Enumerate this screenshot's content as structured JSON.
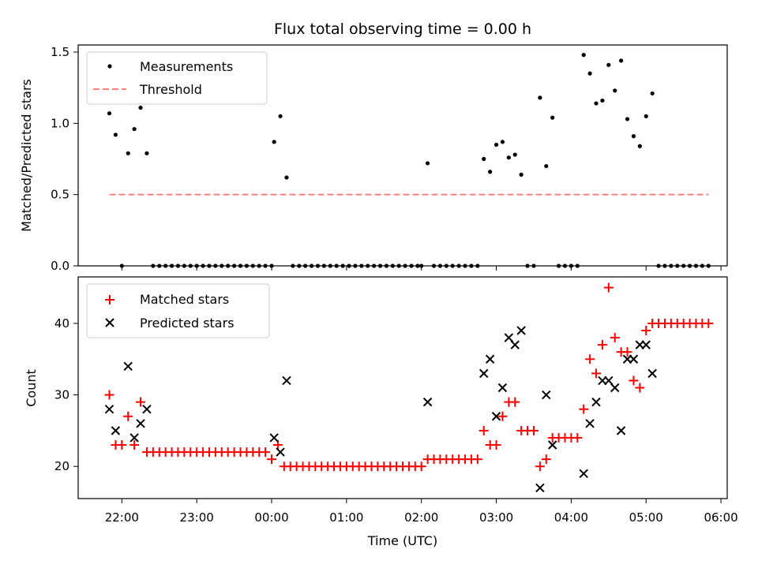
{
  "chart_data": [
    {
      "type": "scatter",
      "title": "Flux total observing time = 0.00 h",
      "ylabel": "Matched/Predicted stars",
      "ylim": [
        0,
        1.55
      ],
      "yticks": [
        "0.0",
        "0.5",
        "1.0",
        "1.5"
      ],
      "legend": {
        "placement": "top-left",
        "entries": [
          "Measurements",
          "Threshold"
        ]
      },
      "threshold": {
        "name": "Threshold",
        "value": 0.5,
        "x_start": "21:50",
        "x_end": "05:50",
        "color": "#ff7f7f"
      },
      "series": [
        {
          "name": "Measurements",
          "color": "#000000",
          "marker": "dot",
          "points": [
            [
              "21:50",
              1.07
            ],
            [
              "21:55",
              0.92
            ],
            [
              "22:00",
              0.0
            ],
            [
              "22:05",
              0.79
            ],
            [
              "22:10",
              0.96
            ],
            [
              "22:15",
              1.11
            ],
            [
              "22:20",
              0.79
            ],
            [
              "22:25",
              0.0
            ],
            [
              "22:30",
              0.0
            ],
            [
              "22:35",
              0.0
            ],
            [
              "22:40",
              0.0
            ],
            [
              "22:45",
              0.0
            ],
            [
              "22:50",
              0.0
            ],
            [
              "22:55",
              0.0
            ],
            [
              "23:00",
              0.0
            ],
            [
              "23:05",
              0.0
            ],
            [
              "23:10",
              0.0
            ],
            [
              "23:15",
              0.0
            ],
            [
              "23:20",
              0.0
            ],
            [
              "23:25",
              0.0
            ],
            [
              "23:30",
              0.0
            ],
            [
              "23:35",
              0.0
            ],
            [
              "23:40",
              0.0
            ],
            [
              "23:45",
              0.0
            ],
            [
              "23:50",
              0.0
            ],
            [
              "23:55",
              0.0
            ],
            [
              "00:00",
              0.0
            ],
            [
              "00:02",
              0.87
            ],
            [
              "00:07",
              1.05
            ],
            [
              "00:12",
              0.62
            ],
            [
              "00:17",
              0.0
            ],
            [
              "00:22",
              0.0
            ],
            [
              "00:27",
              0.0
            ],
            [
              "00:32",
              0.0
            ],
            [
              "00:37",
              0.0
            ],
            [
              "00:42",
              0.0
            ],
            [
              "00:47",
              0.0
            ],
            [
              "00:52",
              0.0
            ],
            [
              "00:57",
              0.0
            ],
            [
              "01:02",
              0.0
            ],
            [
              "01:07",
              0.0
            ],
            [
              "01:12",
              0.0
            ],
            [
              "01:17",
              0.0
            ],
            [
              "01:22",
              0.0
            ],
            [
              "01:27",
              0.0
            ],
            [
              "01:32",
              0.0
            ],
            [
              "01:37",
              0.0
            ],
            [
              "01:42",
              0.0
            ],
            [
              "01:47",
              0.0
            ],
            [
              "01:52",
              0.0
            ],
            [
              "01:57",
              0.0
            ],
            [
              "02:00",
              0.0
            ],
            [
              "02:05",
              0.72
            ],
            [
              "02:10",
              0.0
            ],
            [
              "02:15",
              0.0
            ],
            [
              "02:20",
              0.0
            ],
            [
              "02:25",
              0.0
            ],
            [
              "02:30",
              0.0
            ],
            [
              "02:35",
              0.0
            ],
            [
              "02:40",
              0.0
            ],
            [
              "02:45",
              0.0
            ],
            [
              "02:50",
              0.75
            ],
            [
              "02:55",
              0.66
            ],
            [
              "03:00",
              0.85
            ],
            [
              "03:05",
              0.87
            ],
            [
              "03:10",
              0.76
            ],
            [
              "03:15",
              0.78
            ],
            [
              "03:20",
              0.64
            ],
            [
              "03:25",
              0.0
            ],
            [
              "03:30",
              0.0
            ],
            [
              "03:35",
              1.18
            ],
            [
              "03:40",
              0.7
            ],
            [
              "03:45",
              1.04
            ],
            [
              "03:50",
              0.0
            ],
            [
              "03:55",
              0.0
            ],
            [
              "04:00",
              0.0
            ],
            [
              "04:05",
              0.0
            ],
            [
              "04:10",
              1.48
            ],
            [
              "04:15",
              1.35
            ],
            [
              "04:20",
              1.14
            ],
            [
              "04:25",
              1.16
            ],
            [
              "04:30",
              1.41
            ],
            [
              "04:35",
              1.23
            ],
            [
              "04:40",
              1.44
            ],
            [
              "04:45",
              1.03
            ],
            [
              "04:50",
              0.91
            ],
            [
              "04:55",
              0.84
            ],
            [
              "05:00",
              1.05
            ],
            [
              "05:05",
              1.21
            ],
            [
              "05:10",
              0.0
            ],
            [
              "05:15",
              0.0
            ],
            [
              "05:20",
              0.0
            ],
            [
              "05:25",
              0.0
            ],
            [
              "05:30",
              0.0
            ],
            [
              "05:35",
              0.0
            ],
            [
              "05:40",
              0.0
            ],
            [
              "05:45",
              0.0
            ],
            [
              "05:50",
              0.0
            ]
          ]
        }
      ]
    },
    {
      "type": "scatter",
      "xlabel": "Time (UTC)",
      "ylabel": "Count",
      "xlim": [
        "21:25",
        "06:05"
      ],
      "ylim": [
        15.5,
        46.5
      ],
      "xticks": [
        "22:00",
        "23:00",
        "00:00",
        "01:00",
        "02:00",
        "03:00",
        "04:00",
        "05:00",
        "06:00"
      ],
      "yticks": [
        "20",
        "30",
        "40"
      ],
      "legend": {
        "placement": "top-left",
        "entries": [
          "Matched stars",
          "Predicted stars"
        ]
      },
      "series": [
        {
          "name": "Matched stars",
          "color": "#ff0000",
          "marker": "plus",
          "points": [
            [
              "21:50",
              30
            ],
            [
              "21:55",
              23
            ],
            [
              "22:00",
              23
            ],
            [
              "22:05",
              27
            ],
            [
              "22:10",
              23
            ],
            [
              "22:15",
              29
            ],
            [
              "22:20",
              22
            ],
            [
              "22:25",
              22
            ],
            [
              "22:30",
              22
            ],
            [
              "22:35",
              22
            ],
            [
              "22:40",
              22
            ],
            [
              "22:45",
              22
            ],
            [
              "22:50",
              22
            ],
            [
              "22:55",
              22
            ],
            [
              "23:00",
              22
            ],
            [
              "23:05",
              22
            ],
            [
              "23:10",
              22
            ],
            [
              "23:15",
              22
            ],
            [
              "23:20",
              22
            ],
            [
              "23:25",
              22
            ],
            [
              "23:30",
              22
            ],
            [
              "23:35",
              22
            ],
            [
              "23:40",
              22
            ],
            [
              "23:45",
              22
            ],
            [
              "23:50",
              22
            ],
            [
              "23:55",
              22
            ],
            [
              "00:00",
              21
            ],
            [
              "00:05",
              23
            ],
            [
              "00:10",
              20
            ],
            [
              "00:15",
              20
            ],
            [
              "00:20",
              20
            ],
            [
              "00:25",
              20
            ],
            [
              "00:30",
              20
            ],
            [
              "00:35",
              20
            ],
            [
              "00:40",
              20
            ],
            [
              "00:45",
              20
            ],
            [
              "00:50",
              20
            ],
            [
              "00:55",
              20
            ],
            [
              "01:00",
              20
            ],
            [
              "01:05",
              20
            ],
            [
              "01:10",
              20
            ],
            [
              "01:15",
              20
            ],
            [
              "01:20",
              20
            ],
            [
              "01:25",
              20
            ],
            [
              "01:30",
              20
            ],
            [
              "01:35",
              20
            ],
            [
              "01:40",
              20
            ],
            [
              "01:45",
              20
            ],
            [
              "01:50",
              20
            ],
            [
              "01:55",
              20
            ],
            [
              "02:00",
              20
            ],
            [
              "02:05",
              21
            ],
            [
              "02:10",
              21
            ],
            [
              "02:15",
              21
            ],
            [
              "02:20",
              21
            ],
            [
              "02:25",
              21
            ],
            [
              "02:30",
              21
            ],
            [
              "02:35",
              21
            ],
            [
              "02:40",
              21
            ],
            [
              "02:45",
              21
            ],
            [
              "02:50",
              25
            ],
            [
              "02:55",
              23
            ],
            [
              "03:00",
              23
            ],
            [
              "03:05",
              27
            ],
            [
              "03:10",
              29
            ],
            [
              "03:15",
              29
            ],
            [
              "03:20",
              25
            ],
            [
              "03:25",
              25
            ],
            [
              "03:30",
              25
            ],
            [
              "03:35",
              20
            ],
            [
              "03:40",
              21
            ],
            [
              "03:45",
              24
            ],
            [
              "03:50",
              24
            ],
            [
              "03:55",
              24
            ],
            [
              "04:00",
              24
            ],
            [
              "04:05",
              24
            ],
            [
              "04:10",
              28
            ],
            [
              "04:15",
              35
            ],
            [
              "04:20",
              33
            ],
            [
              "04:25",
              37
            ],
            [
              "04:30",
              45
            ],
            [
              "04:35",
              38
            ],
            [
              "04:40",
              36
            ],
            [
              "04:45",
              36
            ],
            [
              "04:50",
              32
            ],
            [
              "04:55",
              31
            ],
            [
              "05:00",
              39
            ],
            [
              "05:05",
              40
            ],
            [
              "05:10",
              40
            ],
            [
              "05:15",
              40
            ],
            [
              "05:20",
              40
            ],
            [
              "05:25",
              40
            ],
            [
              "05:30",
              40
            ],
            [
              "05:35",
              40
            ],
            [
              "05:40",
              40
            ],
            [
              "05:45",
              40
            ],
            [
              "05:50",
              40
            ]
          ]
        },
        {
          "name": "Predicted stars",
          "color": "#000000",
          "marker": "x",
          "points": [
            [
              "21:50",
              28
            ],
            [
              "21:55",
              25
            ],
            [
              "22:05",
              34
            ],
            [
              "22:10",
              24
            ],
            [
              "22:15",
              26
            ],
            [
              "22:20",
              28
            ],
            [
              "00:02",
              24
            ],
            [
              "00:07",
              22
            ],
            [
              "00:12",
              32
            ],
            [
              "02:05",
              29
            ],
            [
              "02:50",
              33
            ],
            [
              "02:55",
              35
            ],
            [
              "03:00",
              27
            ],
            [
              "03:05",
              31
            ],
            [
              "03:10",
              38
            ],
            [
              "03:15",
              37
            ],
            [
              "03:20",
              39
            ],
            [
              "03:35",
              17
            ],
            [
              "03:40",
              30
            ],
            [
              "03:45",
              23
            ],
            [
              "04:10",
              19
            ],
            [
              "04:15",
              26
            ],
            [
              "04:20",
              29
            ],
            [
              "04:25",
              32
            ],
            [
              "04:30",
              32
            ],
            [
              "04:35",
              31
            ],
            [
              "04:40",
              25
            ],
            [
              "04:45",
              35
            ],
            [
              "04:50",
              35
            ],
            [
              "04:55",
              37
            ],
            [
              "05:00",
              37
            ],
            [
              "05:05",
              33
            ]
          ]
        }
      ]
    }
  ]
}
